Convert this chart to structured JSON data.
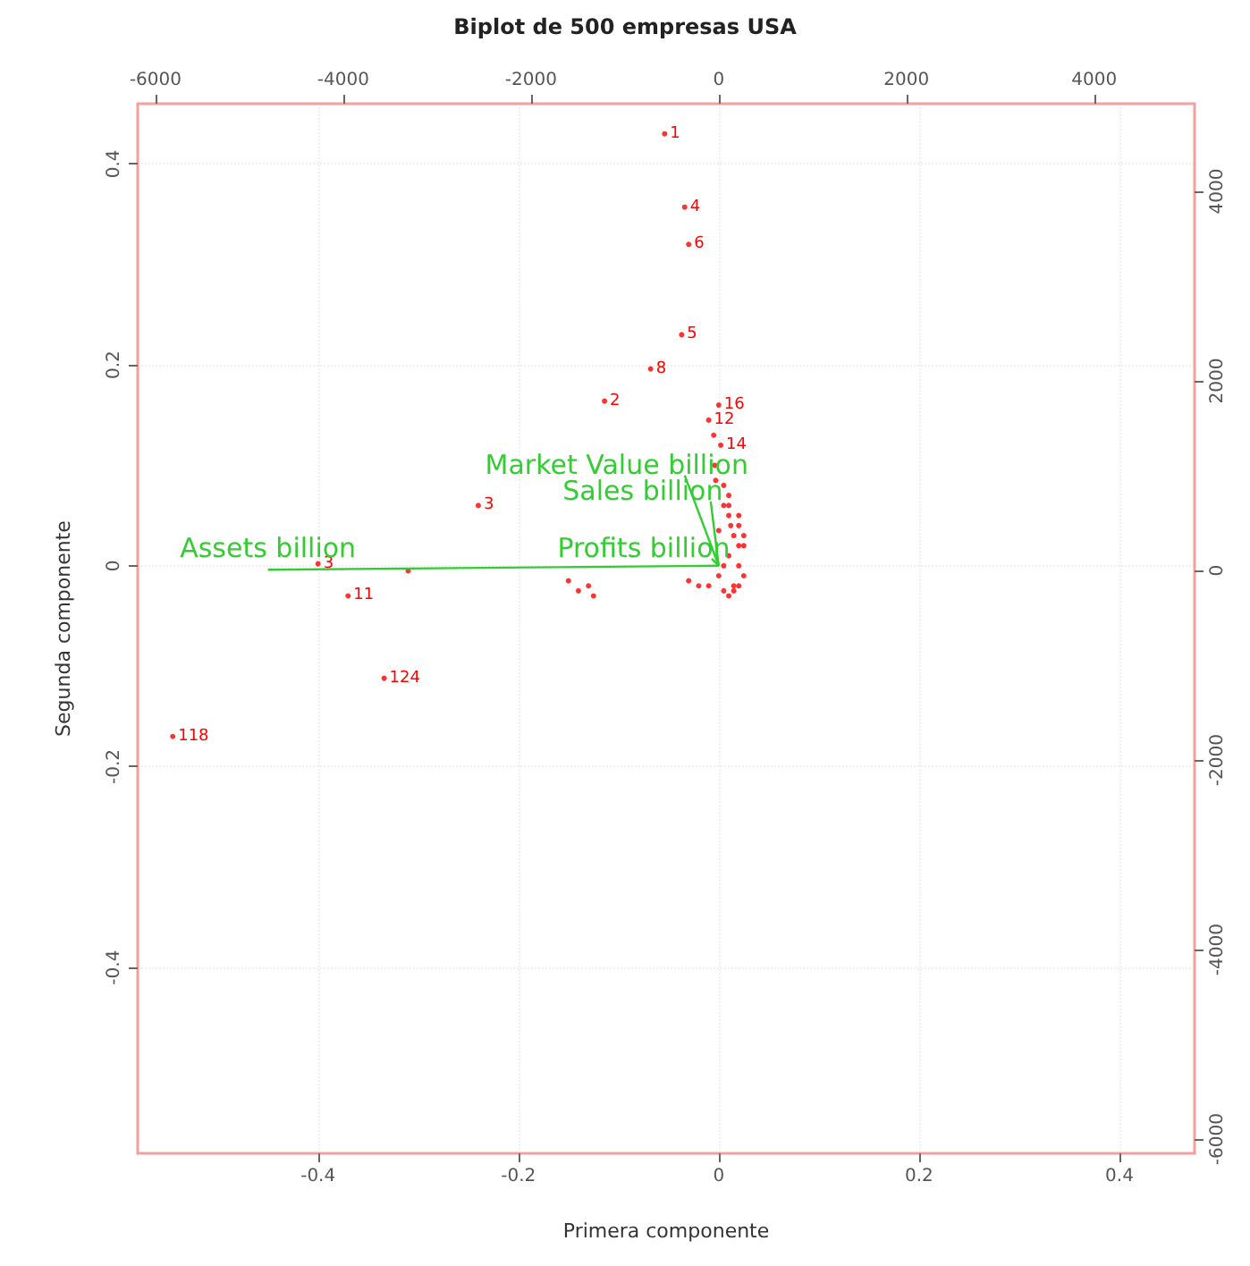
{
  "chart_data": {
    "type": "scatter",
    "title": "Biplot de 500 empresas USA",
    "xlabel": "Primera componente",
    "ylabel": "Segunda componente",
    "xlim": [
      -0.58,
      0.475
    ],
    "xticks": [
      -0.4,
      -0.2,
      0.0,
      0.2,
      0.4
    ],
    "ylim": [
      -0.585,
      0.46
    ],
    "yticks": [
      -0.4,
      -0.2,
      0.0,
      0.2,
      0.4
    ],
    "x2lim": [
      -6190,
      5070
    ],
    "x2ticks": [
      -6000,
      -4000,
      -2000,
      0,
      2000,
      4000
    ],
    "y2lim": [
      -6150,
      4925
    ],
    "y2ticks": [
      -6000,
      -4000,
      -2000,
      0,
      2000,
      4000
    ],
    "grid": true,
    "legend": false,
    "annotations": [
      {
        "text": "1",
        "x": -0.054,
        "y": 0.43
      },
      {
        "text": "4",
        "x": -0.034,
        "y": 0.357
      },
      {
        "text": "6",
        "x": -0.03,
        "y": 0.32
      },
      {
        "text": "5",
        "x": -0.037,
        "y": 0.23
      },
      {
        "text": "8",
        "x": -0.068,
        "y": 0.196
      },
      {
        "text": "2",
        "x": -0.114,
        "y": 0.164
      },
      {
        "text": "3",
        "x": -0.24,
        "y": 0.06
      },
      {
        "text": "3",
        "x": -0.4,
        "y": 0.002
      },
      {
        "text": "11",
        "x": -0.37,
        "y": -0.03
      },
      {
        "text": "124",
        "x": -0.334,
        "y": -0.112
      },
      {
        "text": "118",
        "x": -0.545,
        "y": -0.17
      },
      {
        "text": "12",
        "x": -0.01,
        "y": 0.145
      },
      {
        "text": "16",
        "x": 0.0,
        "y": 0.16
      },
      {
        "text": "14",
        "x": 0.002,
        "y": 0.12
      }
    ],
    "series": [
      {
        "color": "#ff0000",
        "marker": "circle",
        "x": [
          -0.054,
          -0.034,
          -0.03,
          -0.037,
          -0.068,
          -0.114,
          -0.24,
          -0.4,
          -0.31,
          -0.37,
          -0.334,
          -0.545,
          -0.15,
          -0.13,
          -0.125,
          -0.14,
          -0.01,
          0.0,
          -0.005,
          0.002,
          -0.004,
          -0.003,
          0.005,
          0.01,
          0.012,
          0.015,
          0.02,
          0.01,
          0.005,
          0.0,
          0.015,
          0.02,
          0.025,
          0.01,
          0.005,
          0.0,
          0.02,
          0.025,
          0.015,
          0.01,
          0.02,
          0.005,
          -0.01,
          -0.02,
          -0.03,
          0.01,
          0.02,
          0.025
        ],
        "values": [
          0.43,
          0.357,
          0.32,
          0.23,
          0.196,
          0.164,
          0.06,
          0.002,
          -0.005,
          -0.03,
          -0.112,
          -0.17,
          -0.015,
          -0.02,
          -0.03,
          -0.025,
          0.145,
          0.16,
          0.13,
          0.12,
          0.1,
          0.085,
          0.06,
          0.05,
          0.04,
          0.03,
          0.02,
          0.01,
          0.0,
          -0.01,
          -0.02,
          0.0,
          0.02,
          0.06,
          0.08,
          0.035,
          0.05,
          -0.01,
          -0.025,
          -0.03,
          -0.02,
          -0.025,
          -0.02,
          -0.02,
          -0.015,
          0.07,
          0.04,
          0.03
        ]
      },
      {
        "type": "line",
        "marker": "none",
        "name": "Assets billion",
        "color": "#33cc33",
        "x": [
          0,
          -0.45
        ],
        "values": [
          0,
          -0.004
        ]
      },
      {
        "type": "line",
        "marker": "none",
        "name": "Market Value billion",
        "color": "#33cc33",
        "x": [
          0,
          -0.034
        ],
        "values": [
          0,
          0.09
        ]
      },
      {
        "type": "line",
        "marker": "none",
        "name": "Sales billion",
        "color": "#33cc33",
        "x": [
          0,
          -0.008
        ],
        "values": [
          0,
          0.064
        ]
      },
      {
        "type": "line",
        "marker": "none",
        "name": "Profits billion",
        "color": "#33cc33",
        "x": [
          0,
          -0.007
        ],
        "values": [
          0,
          0.007
        ]
      }
    ]
  }
}
